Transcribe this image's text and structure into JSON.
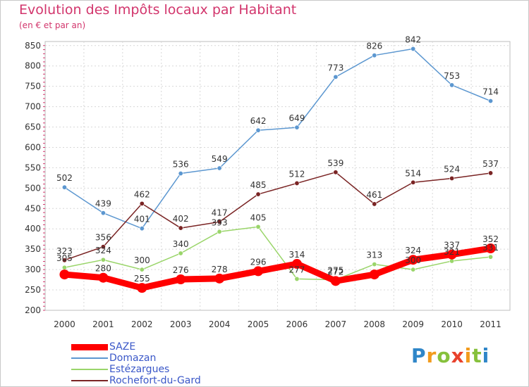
{
  "title": "Evolution des Impôts locaux par Habitant",
  "subtitle": "(en € et par an)",
  "logo": {
    "p": "P",
    "r": "r",
    "o": "o",
    "x": "x",
    "i1": "i",
    "t": "t",
    "i2": "i"
  },
  "chart_data": {
    "type": "line",
    "categories": [
      "2000",
      "2001",
      "2002",
      "2003",
      "2004",
      "2005",
      "2006",
      "2007",
      "2008",
      "2009",
      "2010",
      "2011"
    ],
    "y_ticks": [
      "200",
      "250",
      "300",
      "350",
      "400",
      "450",
      "500",
      "550",
      "600",
      "650",
      "700",
      "750",
      "800",
      "850"
    ],
    "ylim": [
      200,
      860
    ],
    "grid": true,
    "legend_position": "bottom-left",
    "series": [
      {
        "name": "SAZE",
        "color": "#ff0000",
        "values": [
          288,
          280,
          255,
          276,
          278,
          296,
          314,
          272,
          288,
          324,
          337,
          352
        ],
        "labels": [
          "",
          "280",
          "255",
          "276",
          "278",
          "296",
          "314",
          "272",
          "",
          "324",
          "337",
          "352"
        ]
      },
      {
        "name": "Domazan",
        "color": "#5c97d0",
        "values": [
          502,
          439,
          401,
          536,
          549,
          642,
          649,
          773,
          826,
          842,
          753,
          714
        ],
        "labels": [
          "502",
          "439",
          "401",
          "536",
          "549",
          "642",
          "649",
          "773",
          "826",
          "842",
          "753",
          "714"
        ]
      },
      {
        "name": "Estézargues",
        "color": "#9ad56a",
        "values": [
          305,
          324,
          300,
          340,
          393,
          405,
          277,
          275,
          313,
          300,
          321,
          331
        ],
        "labels": [
          "305",
          "324",
          "300",
          "340",
          "393",
          "405",
          "277",
          "275",
          "313",
          "300",
          "321",
          "331"
        ]
      },
      {
        "name": "Rochefort-du-Gard",
        "color": "#7a2424",
        "values": [
          323,
          356,
          462,
          402,
          417,
          485,
          512,
          539,
          461,
          514,
          524,
          537
        ],
        "labels": [
          "323",
          "356",
          "462",
          "402",
          "417",
          "485",
          "512",
          "539",
          "461",
          "514",
          "524",
          "537"
        ]
      }
    ]
  }
}
